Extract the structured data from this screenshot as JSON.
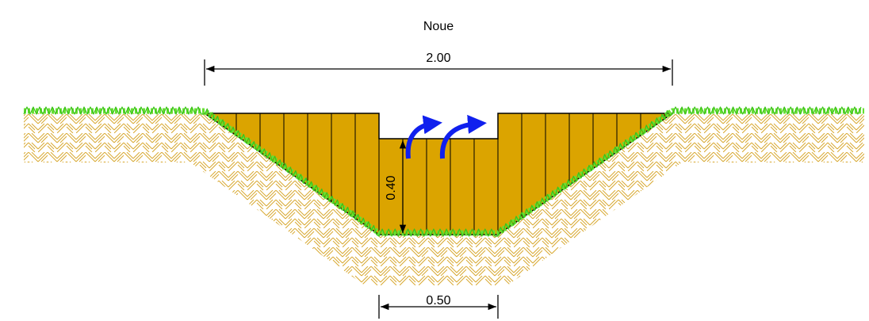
{
  "title": "Noue",
  "dimensions": {
    "top_width": "2.00",
    "depth": "0.40",
    "bottom_width": "0.50"
  }
}
